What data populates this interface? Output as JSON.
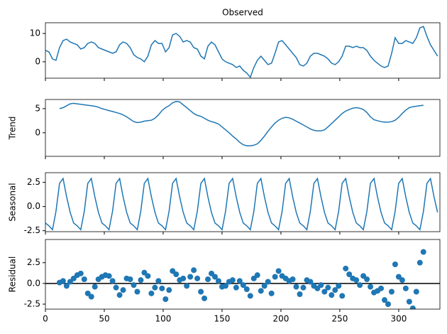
{
  "chart_data": [
    {
      "type": "line",
      "title": "Observed",
      "color": "#1f77b4",
      "x": [
        0,
        3,
        6,
        9,
        12,
        15,
        18,
        21,
        24,
        27,
        30,
        33,
        36,
        39,
        42,
        45,
        48,
        51,
        54,
        57,
        60,
        63,
        66,
        69,
        72,
        75,
        78,
        81,
        84,
        87,
        90,
        93,
        96,
        99,
        102,
        105,
        108,
        111,
        114,
        117,
        120,
        123,
        126,
        129,
        132,
        135,
        138,
        141,
        144,
        147,
        150,
        153,
        156,
        159,
        162,
        165,
        168,
        171,
        174,
        177,
        180,
        183,
        186,
        189,
        192,
        195,
        198,
        201,
        204,
        207,
        210,
        213,
        216,
        219,
        222,
        225,
        228,
        231,
        234,
        237,
        240,
        243,
        246,
        249,
        252,
        255,
        258,
        261,
        264,
        267,
        270,
        273,
        276,
        279,
        282,
        285,
        288,
        291,
        294,
        297,
        300,
        303,
        306,
        309,
        312,
        315,
        318,
        321,
        324,
        327,
        330,
        333
      ],
      "values": [
        4,
        3.5,
        1,
        0.5,
        5,
        7.5,
        8,
        7,
        6.5,
        6,
        4.5,
        5,
        6.5,
        7,
        6.5,
        5,
        4.5,
        4,
        3.5,
        3,
        3.5,
        6,
        7,
        6.5,
        5,
        2.5,
        1.5,
        1,
        0,
        2,
        6,
        7.5,
        6.5,
        6.5,
        3.5,
        5,
        9.5,
        10,
        9,
        7,
        7.5,
        7,
        5,
        4.5,
        2,
        1,
        5.5,
        7,
        6,
        3.5,
        1,
        0,
        -0.5,
        -1,
        -2,
        -1.5,
        -3,
        -4,
        -5.5,
        -2,
        0.5,
        2,
        0.5,
        -1,
        -0.5,
        3,
        7,
        7.5,
        6,
        4.5,
        3,
        1.5,
        -1,
        -1.5,
        -0.5,
        2,
        3,
        3,
        2.5,
        2,
        1,
        -0.5,
        -1,
        0,
        2,
        5.5,
        5.5,
        5,
        5.5,
        5,
        5,
        4,
        2,
        0.5,
        -0.5,
        -1.5,
        -2,
        -1.5,
        3,
        8.5,
        6.5,
        6.5,
        7.5,
        7,
        6.5,
        8.5,
        12,
        12.5,
        9,
        6,
        4,
        2
      ],
      "xlim": [
        0,
        335
      ],
      "ylim": [
        -5.8,
        13.8
      ],
      "yticks": [
        0,
        10
      ]
    },
    {
      "type": "line",
      "ylabel": "Trend",
      "color": "#1f77b4",
      "x": [
        0,
        3,
        6,
        9,
        12,
        15,
        18,
        21,
        24,
        27,
        30,
        33,
        36,
        39,
        42,
        45,
        48,
        51,
        54,
        57,
        60,
        63,
        66,
        69,
        72,
        75,
        78,
        81,
        84,
        87,
        90,
        93,
        96,
        99,
        102,
        105,
        108,
        111,
        114,
        117,
        120,
        123,
        126,
        129,
        132,
        135,
        138,
        141,
        144,
        147,
        150,
        153,
        156,
        159,
        162,
        165,
        168,
        171,
        174,
        177,
        180,
        183,
        186,
        189,
        192,
        195,
        198,
        201,
        204,
        207,
        210,
        213,
        216,
        219,
        222,
        225,
        228,
        231,
        234,
        237,
        240,
        243,
        246,
        249,
        252,
        255,
        258,
        261,
        264,
        267,
        270,
        273,
        276,
        279,
        282,
        285,
        288,
        291,
        294,
        297,
        300,
        303,
        306,
        309,
        312,
        315,
        318,
        321,
        324,
        327,
        330,
        333
      ],
      "values": [
        null,
        null,
        null,
        null,
        5,
        5.2,
        5.6,
        6,
        6.1,
        6,
        5.9,
        5.8,
        5.7,
        5.6,
        5.5,
        5.3,
        5,
        4.8,
        4.6,
        4.4,
        4.2,
        4,
        3.7,
        3.3,
        2.8,
        2.3,
        2.1,
        2.2,
        2.4,
        2.5,
        2.6,
        3,
        3.7,
        4.6,
        5.2,
        5.6,
        6.2,
        6.5,
        6.4,
        5.8,
        5.2,
        4.6,
        4,
        3.6,
        3.4,
        3,
        2.6,
        2.3,
        2.1,
        1.8,
        1.2,
        0.6,
        0,
        -0.7,
        -1.3,
        -2,
        -2.5,
        -2.7,
        -2.7,
        -2.6,
        -2.3,
        -1.6,
        -0.7,
        0.3,
        1.2,
        2,
        2.6,
        3,
        3.2,
        3.1,
        2.8,
        2.4,
        2,
        1.6,
        1.2,
        0.8,
        0.5,
        0.4,
        0.4,
        0.6,
        1.2,
        1.9,
        2.6,
        3.3,
        4,
        4.5,
        4.8,
        5.1,
        5.2,
        5.1,
        4.8,
        4.2,
        3.3,
        2.7,
        2.5,
        2.3,
        2.2,
        2.2,
        2.3,
        2.6,
        3.2,
        4,
        4.7,
        5.2,
        5.4,
        5.5,
        5.6,
        5.7,
        null,
        null,
        null,
        null
      ],
      "xlim": [
        0,
        335
      ],
      "ylim": [
        -4.9,
        6.9
      ],
      "yticks": [
        0,
        5
      ]
    },
    {
      "type": "line",
      "ylabel": "Seasonal",
      "color": "#1f77b4",
      "x": [
        0,
        3,
        6,
        9,
        12,
        15,
        18,
        21,
        24,
        27,
        30,
        33,
        36,
        39,
        42,
        45,
        48,
        51,
        54,
        57,
        60,
        63,
        66,
        69,
        72,
        75,
        78,
        81,
        84,
        87,
        90,
        93,
        96,
        99,
        102,
        105,
        108,
        111,
        114,
        117,
        120,
        123,
        126,
        129,
        132,
        135,
        138,
        141,
        144,
        147,
        150,
        153,
        156,
        159,
        162,
        165,
        168,
        171,
        174,
        177,
        180,
        183,
        186,
        189,
        192,
        195,
        198,
        201,
        204,
        207,
        210,
        213,
        216,
        219,
        222,
        225,
        228,
        231,
        234,
        237,
        240,
        243,
        246,
        249,
        252,
        255,
        258,
        261,
        264,
        267,
        270,
        273,
        276,
        279,
        282,
        285,
        288,
        291,
        294,
        297,
        300,
        303,
        306,
        309,
        312,
        315,
        318,
        321,
        324,
        327,
        330,
        333
      ],
      "values": [
        -1.7,
        -2.0,
        -2.4,
        -0.5,
        2.4,
        2.9,
        1.0,
        -0.6,
        -1.7,
        -2.0,
        -2.4,
        -0.5,
        2.4,
        2.9,
        1.0,
        -0.6,
        -1.7,
        -2.0,
        -2.4,
        -0.5,
        2.4,
        2.9,
        1.0,
        -0.6,
        -1.7,
        -2.0,
        -2.4,
        -0.5,
        2.4,
        2.9,
        1.0,
        -0.6,
        -1.7,
        -2.0,
        -2.4,
        -0.5,
        2.4,
        2.9,
        1.0,
        -0.6,
        -1.7,
        -2.0,
        -2.4,
        -0.5,
        2.4,
        2.9,
        1.0,
        -0.6,
        -1.7,
        -2.0,
        -2.4,
        -0.5,
        2.4,
        2.9,
        1.0,
        -0.6,
        -1.7,
        -2.0,
        -2.4,
        -0.5,
        2.4,
        2.9,
        1.0,
        -0.6,
        -1.7,
        -2.0,
        -2.4,
        -0.5,
        2.4,
        2.9,
        1.0,
        -0.6,
        -1.7,
        -2.0,
        -2.4,
        -0.5,
        2.4,
        2.9,
        1.0,
        -0.6,
        -1.7,
        -2.0,
        -2.4,
        -0.5,
        2.4,
        2.9,
        1.0,
        -0.6,
        -1.7,
        -2.0,
        -2.4,
        -0.5,
        2.4,
        2.9,
        1.0,
        -0.6,
        -1.7,
        -2.0,
        -2.4,
        -0.5,
        2.4,
        2.9,
        1.0,
        -0.6,
        -1.7,
        -2.0,
        -2.4,
        -0.5,
        2.4,
        2.9,
        1.0,
        -0.6
      ],
      "xlim": [
        0,
        335
      ],
      "ylim": [
        -2.6,
        3.5
      ],
      "yticks": [
        2.5,
        {
          "value": 0,
          "label": "0.0"
        },
        -2.5
      ]
    },
    {
      "type": "scatter",
      "ylabel": "Residual",
      "color": "#1f77b4",
      "x": [
        0,
        3,
        6,
        9,
        12,
        15,
        18,
        21,
        24,
        27,
        30,
        33,
        36,
        39,
        42,
        45,
        48,
        51,
        54,
        57,
        60,
        63,
        66,
        69,
        72,
        75,
        78,
        81,
        84,
        87,
        90,
        93,
        96,
        99,
        102,
        105,
        108,
        111,
        114,
        117,
        120,
        123,
        126,
        129,
        132,
        135,
        138,
        141,
        144,
        147,
        150,
        153,
        156,
        159,
        162,
        165,
        168,
        171,
        174,
        177,
        180,
        183,
        186,
        189,
        192,
        195,
        198,
        201,
        204,
        207,
        210,
        213,
        216,
        219,
        222,
        225,
        228,
        231,
        234,
        237,
        240,
        243,
        246,
        249,
        252,
        255,
        258,
        261,
        264,
        267,
        270,
        273,
        276,
        279,
        282,
        285,
        288,
        291,
        294,
        297,
        300,
        303,
        306,
        309,
        312,
        315,
        318,
        321,
        324,
        327,
        330,
        333
      ],
      "values": [
        null,
        null,
        null,
        null,
        0.1,
        0.3,
        -0.3,
        0.2,
        0.6,
        1.0,
        1.2,
        0.5,
        -1.2,
        -1.6,
        -0.4,
        0.5,
        0.8,
        1.0,
        0.9,
        0.3,
        -0.5,
        -1.4,
        -0.8,
        0.6,
        0.5,
        -0.2,
        -1.0,
        0.4,
        1.3,
        0.9,
        -1.2,
        -0.5,
        0.3,
        -0.6,
        -1.9,
        -0.8,
        1.5,
        1.1,
        0.4,
        0.6,
        -0.3,
        0.8,
        1.6,
        0.6,
        -1.0,
        -1.8,
        0.5,
        1.2,
        0.8,
        0.3,
        -0.4,
        -0.3,
        0.2,
        0.4,
        -0.5,
        0.3,
        -0.2,
        -0.7,
        -1.5,
        0.6,
        1.0,
        -0.9,
        -0.3,
        0.2,
        -1.2,
        0.8,
        1.5,
        0.9,
        0.6,
        0.3,
        0.5,
        -0.4,
        -1.3,
        -0.5,
        0.4,
        0.2,
        -0.3,
        -0.6,
        -0.2,
        -1.0,
        -0.5,
        -1.4,
        -0.8,
        -0.3,
        -1.5,
        1.8,
        1.1,
        0.6,
        0.4,
        -0.2,
        0.9,
        0.5,
        -0.4,
        -1.1,
        -0.9,
        -0.6,
        -2.0,
        -2.5,
        -1.0,
        2.3,
        0.8,
        0.4,
        -0.6,
        -2.2,
        -3.0,
        -1.0,
        2.5,
        3.8,
        null,
        null,
        null,
        null
      ],
      "xlim": [
        0,
        335
      ],
      "ylim": [
        -3.1,
        5.3
      ],
      "yticks": [
        2.5,
        {
          "value": 0,
          "label": "0.0"
        },
        -2.5
      ],
      "xticks": [
        0,
        50,
        100,
        150,
        200,
        250,
        300
      ]
    }
  ]
}
